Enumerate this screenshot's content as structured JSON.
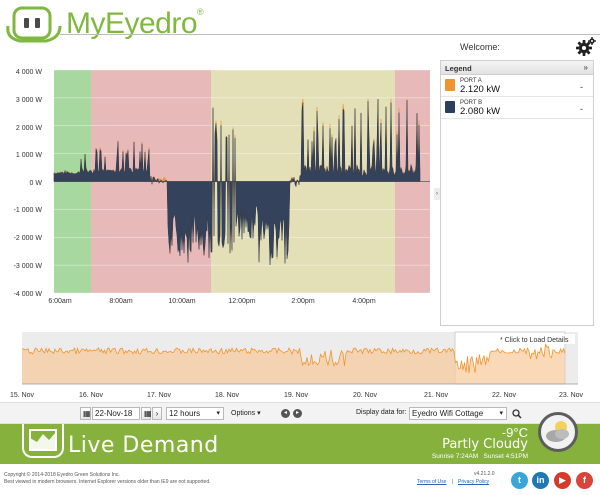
{
  "app": {
    "logo_text": "MyEyedro",
    "logo_reg": "®",
    "welcome": "Welcome:"
  },
  "main_chart": {
    "y_ticks": [
      "4 000 W",
      "3 000 W",
      "2 000 W",
      "1 000 W",
      "0 W",
      "-1 000 W",
      "-2 000 W",
      "-3 000 W",
      "-4 000 W"
    ],
    "x_ticks": [
      "6:00am",
      "8:00am",
      "10:00am",
      "12:00pm",
      "2:00pm",
      "4:00pm"
    ]
  },
  "legend": {
    "title": "Legend",
    "collapse": "»",
    "items": [
      {
        "name": "PORT A",
        "value": "2.120 kW",
        "dash": "-",
        "color": "#f0952e"
      },
      {
        "name": "PORT B",
        "value": "2.080 kW",
        "dash": "-",
        "color": "#2a3f5e"
      }
    ],
    "side_arrow": "›"
  },
  "navigator": {
    "hint": "* Click to Load Details",
    "dates": [
      "15. Nov",
      "16. Nov",
      "17. Nov",
      "18. Nov",
      "19. Nov",
      "20. Nov",
      "21. Nov",
      "22. Nov",
      "23. Nov"
    ]
  },
  "toolbar": {
    "date": "22-Nov-18",
    "range": "12 hours",
    "options": "Options",
    "display_label": "Display data for:",
    "location": "Eyedro Wifi Cottage"
  },
  "banner": {
    "title": "Live Demand",
    "temp": "-9°C",
    "condition": "Partly Cloudy",
    "sunrise": "Sunrise 7:24AM",
    "sunset": "Sunset 4:51PM"
  },
  "footer": {
    "copyright": "Copyright © 2014-2018 Eyedro Green Solutions Inc.",
    "browser_note": "Best viewed in modern browsers. Internet Explorer versions older than IE9 are not supported.",
    "version": "v4.21.2.0",
    "terms": "Terms of Use",
    "privacy": "Privacy Policy",
    "separator": "|"
  },
  "colors": {
    "accent_green": "#86b13c",
    "port_a": "#f0952e",
    "port_b": "#2a3f5e"
  }
}
